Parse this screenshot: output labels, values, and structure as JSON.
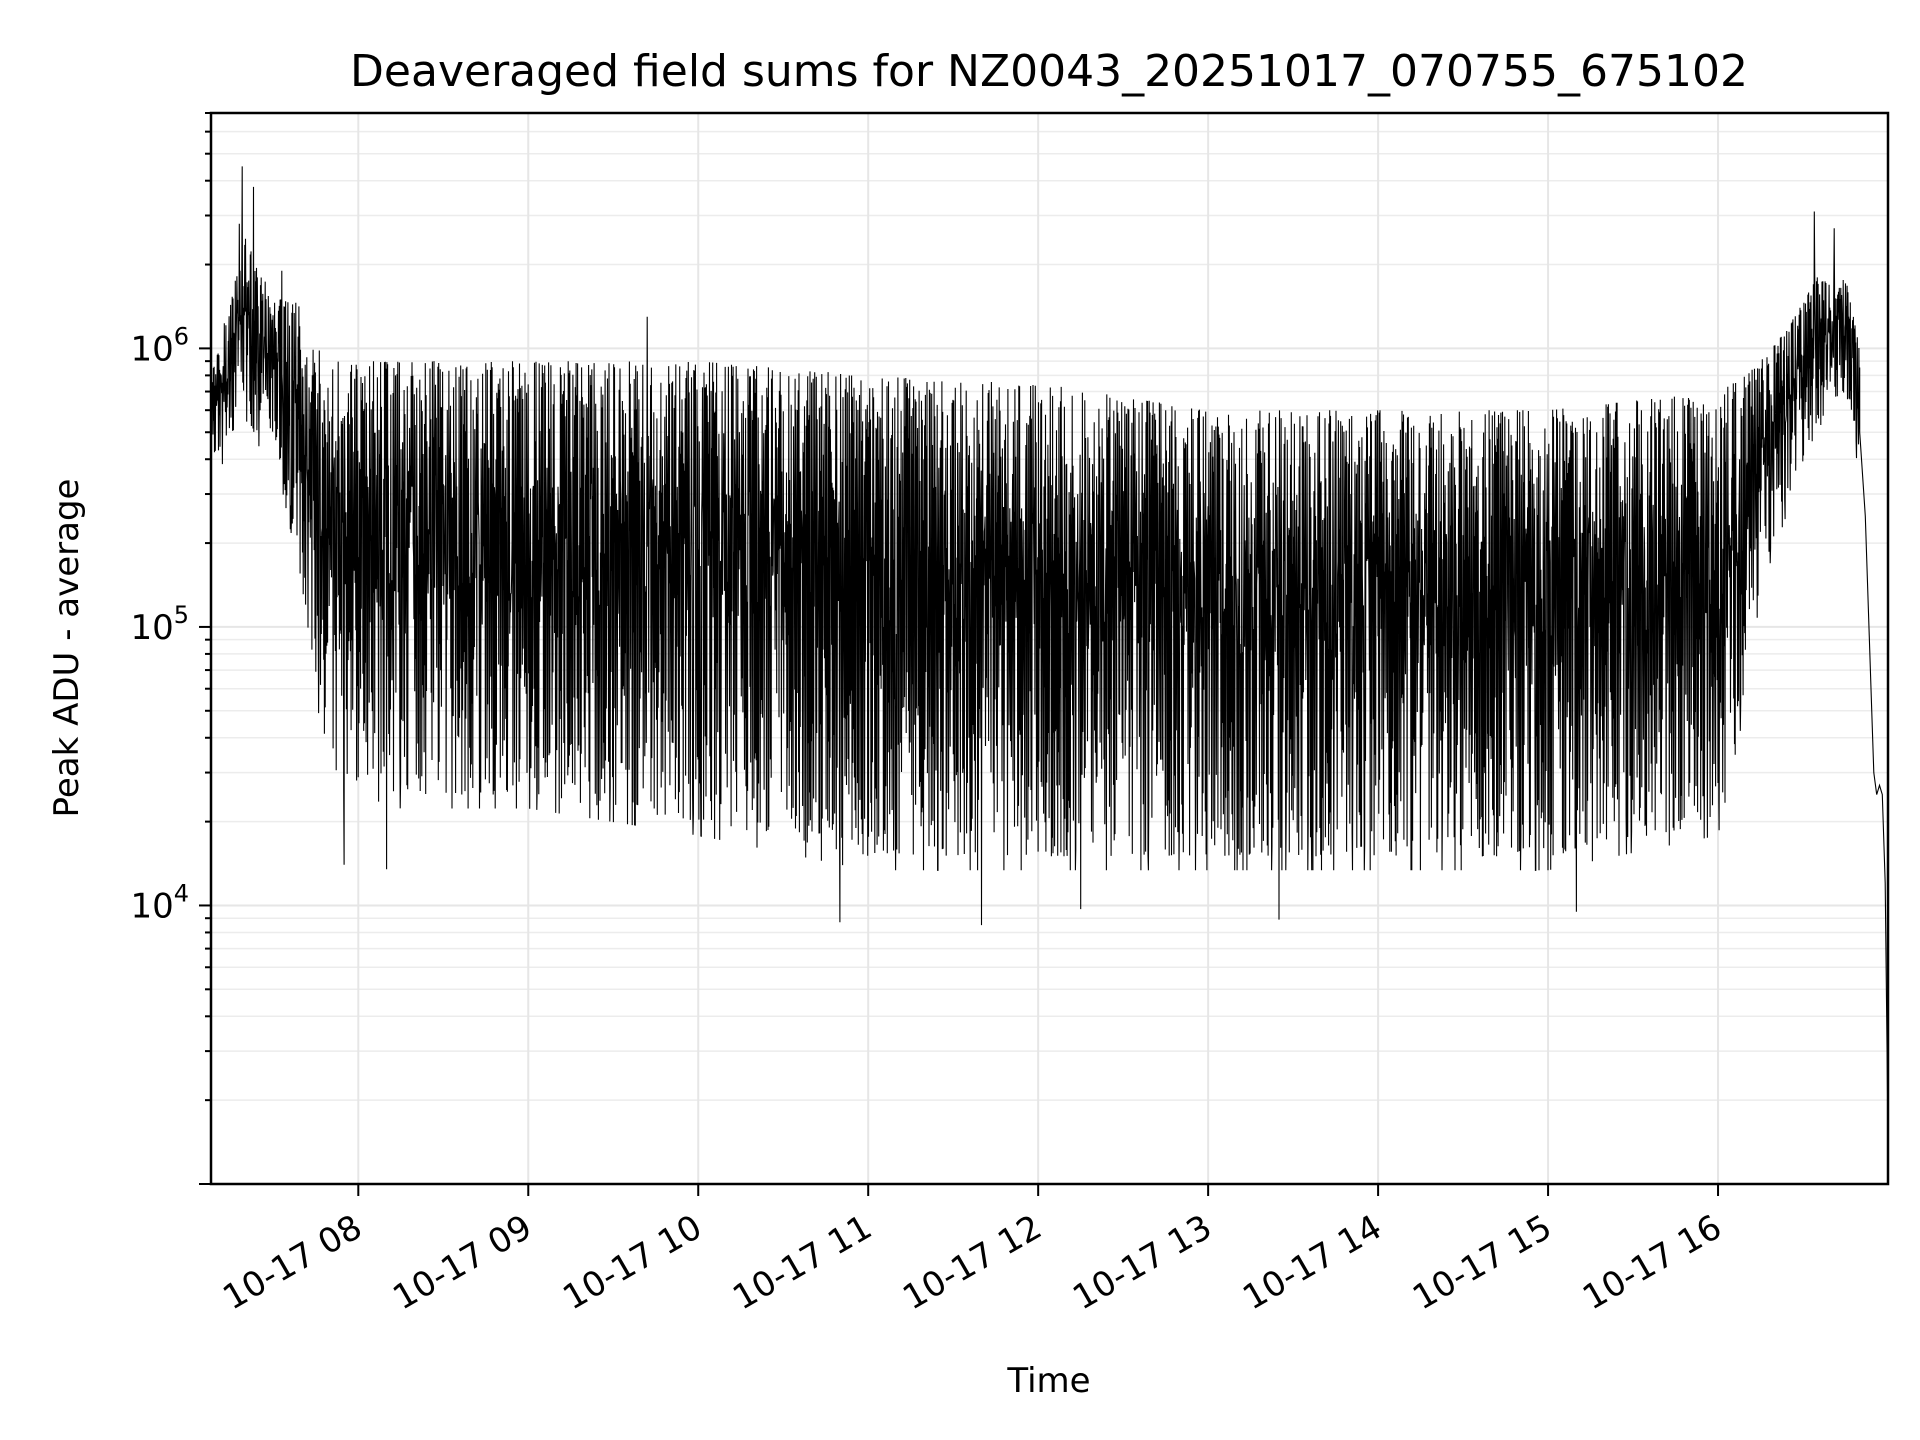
{
  "chart_data": {
    "type": "line",
    "title": "Deaveraged field sums for NZ0043_20251017_070755_675102",
    "xlabel": "Time",
    "ylabel": "Peak ADU - average",
    "yscale": "log",
    "xlim": [
      "2025-10-17 07:08",
      "2025-10-17 17:00"
    ],
    "ylim": [
      1000,
      7000000
    ],
    "grid": true,
    "x_ticks": [
      {
        "label": "10-17 08",
        "value": "2025-10-17 08:00"
      },
      {
        "label": "10-17 09",
        "value": "2025-10-17 09:00"
      },
      {
        "label": "10-17 10",
        "value": "2025-10-17 10:00"
      },
      {
        "label": "10-17 11",
        "value": "2025-10-17 11:00"
      },
      {
        "label": "10-17 12",
        "value": "2025-10-17 12:00"
      },
      {
        "label": "10-17 13",
        "value": "2025-10-17 13:00"
      },
      {
        "label": "10-17 14",
        "value": "2025-10-17 14:00"
      },
      {
        "label": "10-17 15",
        "value": "2025-10-17 15:00"
      },
      {
        "label": "10-17 16",
        "value": "2025-10-17 16:00"
      }
    ],
    "y_ticks": [
      {
        "base": "10",
        "exp": "4",
        "value": 10000
      },
      {
        "base": "10",
        "exp": "5",
        "value": 100000
      },
      {
        "base": "10",
        "exp": "6",
        "value": 1000000
      }
    ],
    "series": [
      {
        "color": "#000000",
        "envelope": [
          {
            "x": "2025-10-17 07:08",
            "low": 400000,
            "high": 800000
          },
          {
            "x": "2025-10-17 07:20",
            "low": 500000,
            "high": 2500000
          },
          {
            "x": "2025-10-17 07:30",
            "low": 500000,
            "high": 1500000
          },
          {
            "x": "2025-10-17 07:38",
            "low": 200000,
            "high": 1500000
          },
          {
            "x": "2025-10-17 07:42",
            "low": 100000,
            "high": 1200000
          },
          {
            "x": "2025-10-17 07:50",
            "low": 30000,
            "high": 900000
          },
          {
            "x": "2025-10-17 08:15",
            "low": 25000,
            "high": 900000
          },
          {
            "x": "2025-10-17 09:00",
            "low": 25000,
            "high": 900000
          },
          {
            "x": "2025-10-17 10:00",
            "low": 20000,
            "high": 900000
          },
          {
            "x": "2025-10-17 11:00",
            "low": 15000,
            "high": 800000
          },
          {
            "x": "2025-10-17 12:00",
            "low": 15000,
            "high": 750000
          },
          {
            "x": "2025-10-17 13:00",
            "low": 15000,
            "high": 600000
          },
          {
            "x": "2025-10-17 14:00",
            "low": 15000,
            "high": 600000
          },
          {
            "x": "2025-10-17 15:00",
            "low": 15000,
            "high": 600000
          },
          {
            "x": "2025-10-17 16:00",
            "low": 20000,
            "high": 700000
          },
          {
            "x": "2025-10-17 16:10",
            "low": 60000,
            "high": 800000
          },
          {
            "x": "2025-10-17 16:15",
            "low": 150000,
            "high": 900000
          },
          {
            "x": "2025-10-17 16:25",
            "low": 300000,
            "high": 1200000
          },
          {
            "x": "2025-10-17 16:35",
            "low": 500000,
            "high": 1800000
          },
          {
            "x": "2025-10-17 16:45",
            "low": 700000,
            "high": 1800000
          },
          {
            "x": "2025-10-17 16:50",
            "low": 400000,
            "high": 1000000
          }
        ],
        "peaks": [
          {
            "x": "2025-10-17 07:18",
            "y": 2800000
          },
          {
            "x": "2025-10-17 07:19",
            "y": 4500000
          },
          {
            "x": "2025-10-17 07:23",
            "y": 3800000
          },
          {
            "x": "2025-10-17 07:33",
            "y": 1900000
          },
          {
            "x": "2025-10-17 09:42",
            "y": 1300000
          },
          {
            "x": "2025-10-17 16:34",
            "y": 3100000
          },
          {
            "x": "2025-10-17 16:41",
            "y": 2700000
          }
        ],
        "dips": [
          {
            "x": "2025-10-17 07:55",
            "y": 14000
          },
          {
            "x": "2025-10-17 08:10",
            "y": 13500
          },
          {
            "x": "2025-10-17 10:50",
            "y": 8700
          },
          {
            "x": "2025-10-17 11:40",
            "y": 8500
          },
          {
            "x": "2025-10-17 12:15",
            "y": 9700
          },
          {
            "x": "2025-10-17 13:25",
            "y": 8900
          },
          {
            "x": "2025-10-17 15:10",
            "y": 9500
          }
        ],
        "tail": [
          {
            "x": "2025-10-17 16:50",
            "y": 500000
          },
          {
            "x": "2025-10-17 16:52",
            "y": 250000
          },
          {
            "x": "2025-10-17 16:54",
            "y": 60000
          },
          {
            "x": "2025-10-17 16:55",
            "y": 30000
          },
          {
            "x": "2025-10-17 16:56",
            "y": 25000
          },
          {
            "x": "2025-10-17 16:57",
            "y": 27000
          },
          {
            "x": "2025-10-17 16:58",
            "y": 25000
          },
          {
            "x": "2025-10-17 16:59",
            "y": 12000
          },
          {
            "x": "2025-10-17 17:00",
            "y": 1500
          }
        ]
      }
    ]
  }
}
